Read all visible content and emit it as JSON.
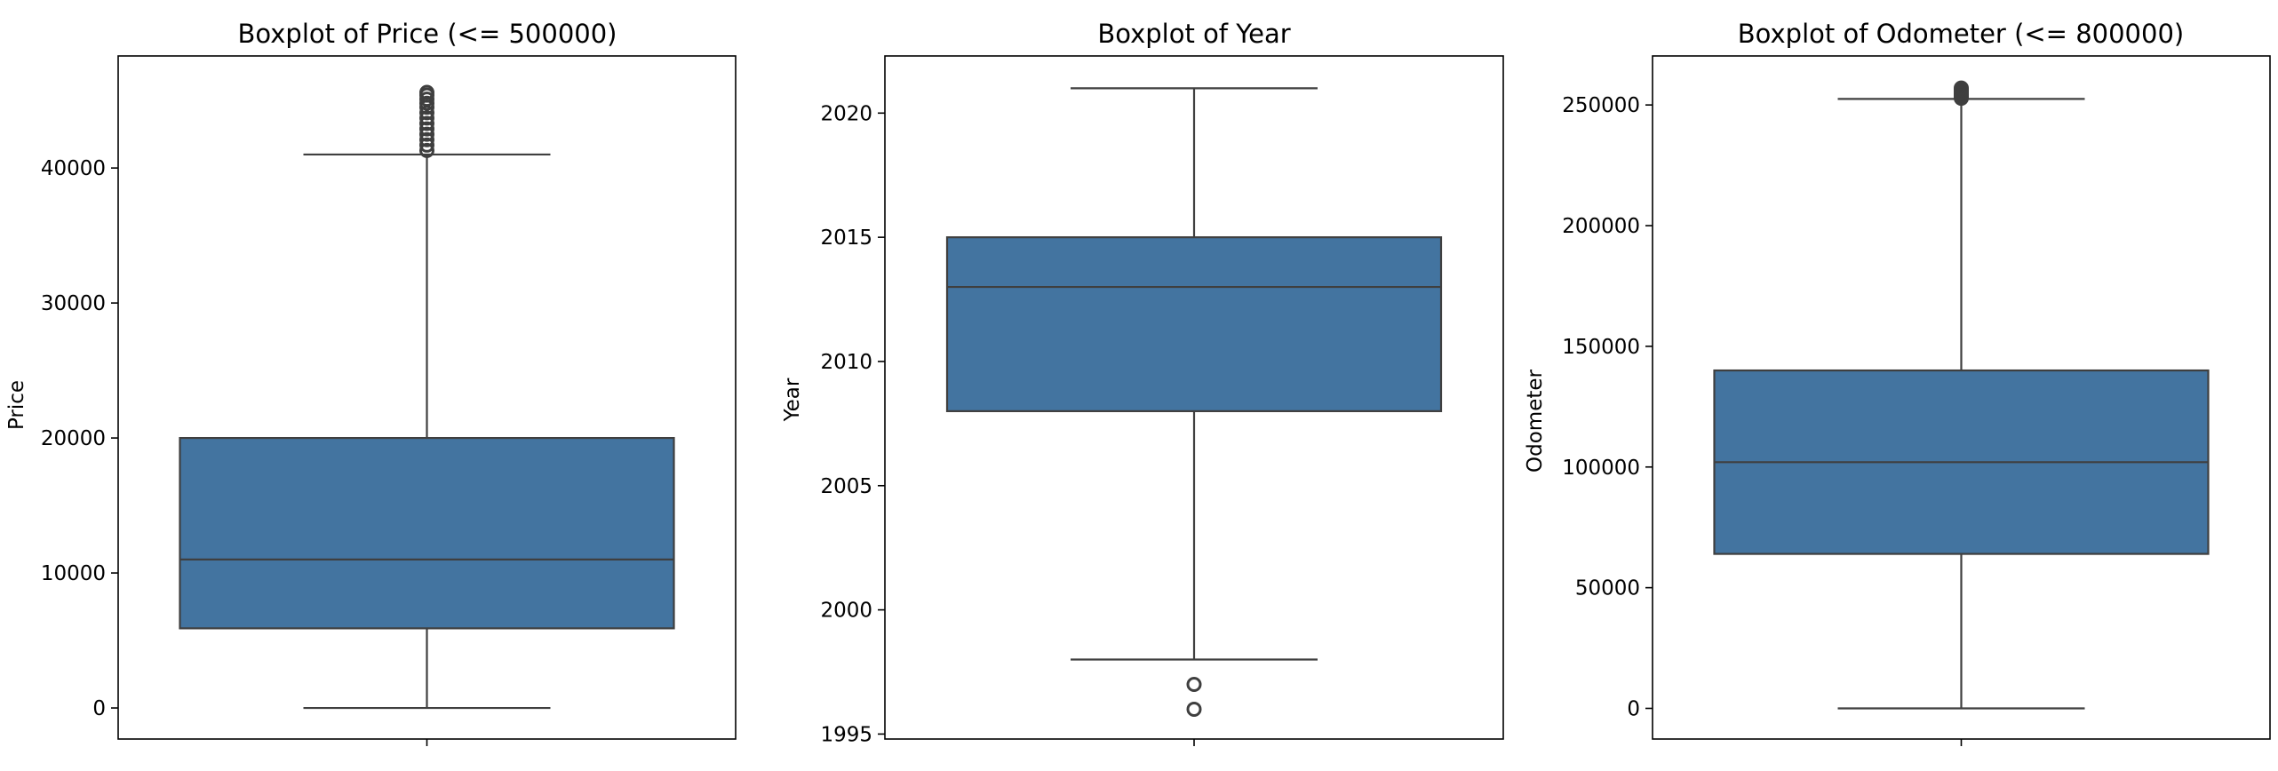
{
  "chart_data": [
    {
      "type": "box",
      "title": "Boxplot of Price (<= 500000)",
      "xlabel": "",
      "ylabel": "Price",
      "ylim": [
        -2300,
        48300
      ],
      "yticks": [
        0,
        10000,
        20000,
        30000,
        40000
      ],
      "tick_labels": [
        "0",
        "10000",
        "20000",
        "30000",
        "40000"
      ],
      "box": {
        "whisker_low": 0,
        "q1": 5900,
        "median": 11000,
        "q3": 20000,
        "whisker_high": 41000
      },
      "outliers": [
        41300,
        41700,
        42100,
        42500,
        42900,
        43300,
        43700,
        44100,
        44500,
        44800,
        45100,
        45400,
        45600
      ],
      "grid": false,
      "color": "#4374a0"
    },
    {
      "type": "box",
      "title": "Boxplot of Year",
      "xlabel": "",
      "ylabel": "Year",
      "ylim": [
        1994.8,
        2022.3
      ],
      "yticks": [
        1995,
        2000,
        2005,
        2010,
        2015,
        2020
      ],
      "tick_labels": [
        "1995",
        "2000",
        "2005",
        "2010",
        "2015",
        "2020"
      ],
      "box": {
        "whisker_low": 1998,
        "q1": 2008,
        "median": 2013,
        "q3": 2015,
        "whisker_high": 2021
      },
      "outliers": [
        1997,
        1996
      ],
      "grid": false,
      "color": "#4374a0"
    },
    {
      "type": "box",
      "title": "Boxplot of Odometer (<= 800000)",
      "xlabel": "",
      "ylabel": "Odometer",
      "ylim": [
        -12700,
        270300
      ],
      "yticks": [
        0,
        50000,
        100000,
        150000,
        200000,
        250000
      ],
      "tick_labels": [
        "0",
        "50000",
        "100000",
        "150000",
        "200000",
        "250000"
      ],
      "box": {
        "whisker_low": 0,
        "q1": 64000,
        "median": 102000,
        "q3": 140000,
        "whisker_high": 252500
      },
      "outliers": [
        252800,
        253500,
        254200,
        254900,
        255600,
        256300,
        257000
      ],
      "grid": false,
      "color": "#4374a0"
    }
  ]
}
